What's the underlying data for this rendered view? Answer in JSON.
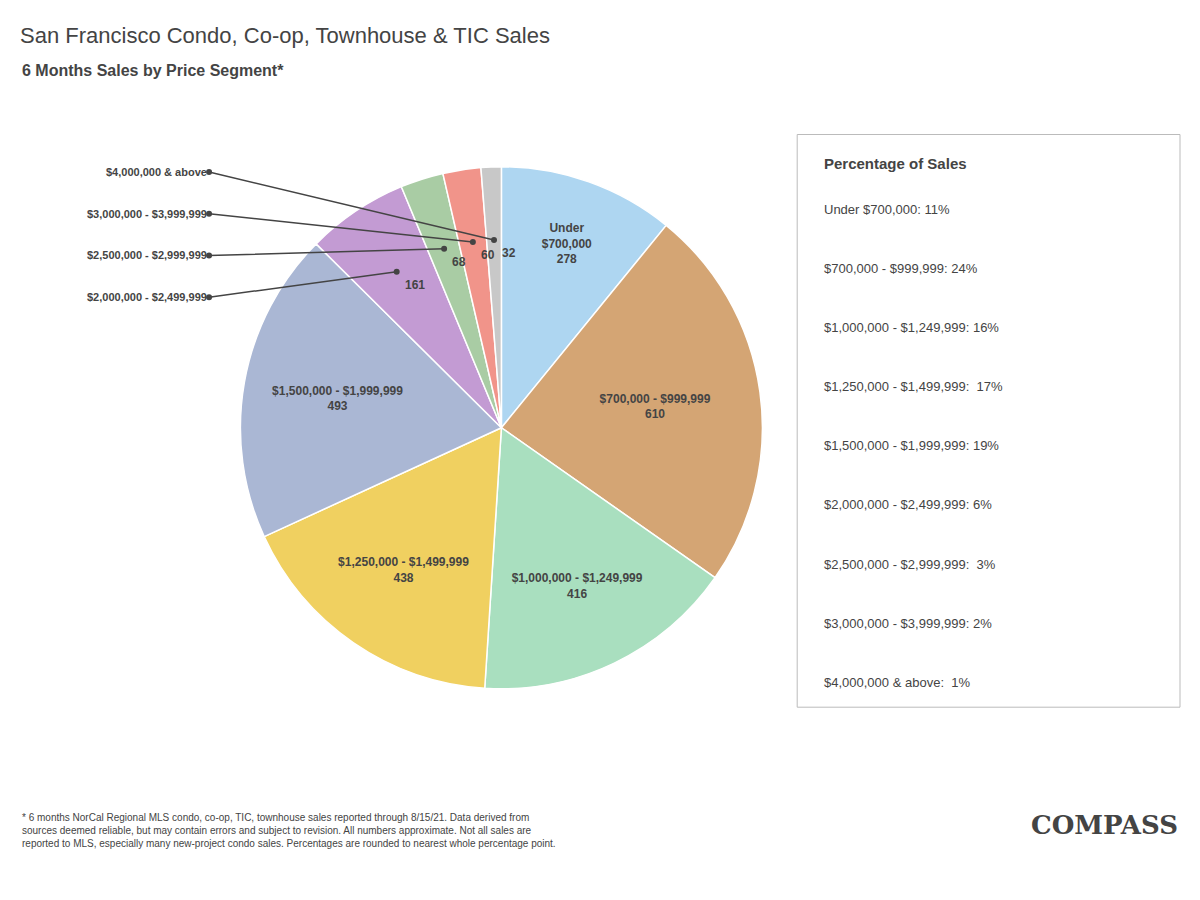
{
  "chart_data": {
    "type": "pie",
    "title": "San Francisco Condo, Co-op, Townhouse & TIC Sales",
    "subtitle": "6 Months Sales by Price Segment*",
    "categories": [
      "Under\n$700,000",
      "$700,000 - $999,999",
      "$1,000,000 - $1,249,999",
      "$1,250,000 - $1,499,999",
      "$1,500,000 - $1,999,999",
      "$2,000,000 - $2,499,999",
      "$2,500,000 - $2,999,999",
      "$3,000,000 - $3,999,999",
      "$4,000,000 & above"
    ],
    "values": [
      278,
      610,
      416,
      438,
      493,
      161,
      68,
      60,
      32
    ],
    "colors": [
      "#aed6f1",
      "#d4a574",
      "#a9dfbf",
      "#f0d060",
      "#aab7d4",
      "#c39bd3",
      "#a9cca4",
      "#f1948a",
      "#c8c8c8"
    ],
    "data_labels": true,
    "legend_title": "Percentage of Sales",
    "legend_entries": [
      "Under $700,000: 11%",
      "$700,000 - $999,999: 24%",
      "$1,000,000 - $1,249,999: 16%",
      "$1,250,000 - $1,499,999:  17%",
      "$1,500,000 - $1,999,999: 19%",
      "$2,000,000 - $2,499,999: 6%",
      "$2,500,000 - $2,999,999:  3%",
      "$3,000,000 - $3,999,999: 2%",
      "$4,000,000 & above:  1%"
    ],
    "footnote": "* 6 months NorCal Regional MLS condo, co-op, TIC, townhouse sales reported through 8/15/21. Data derived from\nsources deemed reliable, but may contain errors and subject to revision. All numbers approximate. Not all sales are\nreported to MLS, especially many new-project condo sales. Percentages are rounded to nearest whole percentage point.",
    "logo": "COMPASS"
  }
}
